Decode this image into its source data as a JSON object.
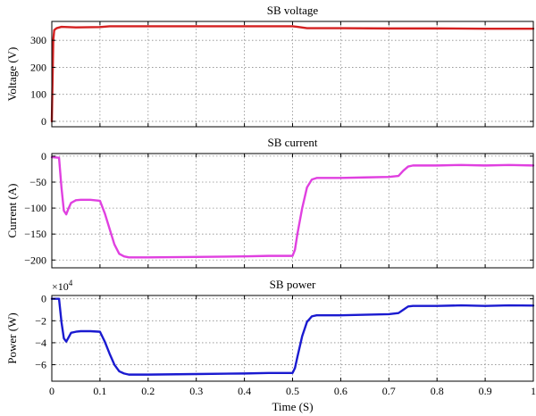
{
  "chart_data": [
    {
      "type": "line",
      "title": "SB voltage",
      "xlabel": "",
      "ylabel": "Voltage (V)",
      "xlim": [
        0,
        1
      ],
      "ylim": [
        -20,
        370
      ],
      "xticks": [
        0,
        0.1,
        0.2,
        0.3,
        0.4,
        0.5,
        0.6,
        0.7,
        0.8,
        0.9,
        1
      ],
      "yticks": [
        0,
        100,
        200,
        300
      ],
      "ytick_labels": [
        "0",
        "100",
        "200",
        "300"
      ],
      "grid": true,
      "color": "#d42020",
      "series": [
        {
          "x": [
            0,
            0.003,
            0.005,
            0.01,
            0.02,
            0.05,
            0.1,
            0.12,
            0.2,
            0.3,
            0.4,
            0.5,
            0.51,
            0.53,
            0.6,
            0.7,
            0.8,
            0.9,
            1.0
          ],
          "y": [
            0,
            300,
            338,
            345,
            350,
            348,
            349,
            352,
            352,
            352,
            352,
            352,
            350,
            345,
            345,
            344,
            344,
            343,
            343
          ]
        }
      ]
    },
    {
      "type": "line",
      "title": "SB current",
      "xlabel": "",
      "ylabel": "Current (A)",
      "xlim": [
        0,
        1
      ],
      "ylim": [
        -215,
        5
      ],
      "xticks": [
        0,
        0.1,
        0.2,
        0.3,
        0.4,
        0.5,
        0.6,
        0.7,
        0.8,
        0.9,
        1
      ],
      "yticks": [
        0,
        -50,
        -100,
        -150,
        -200
      ],
      "ytick_labels": [
        "0",
        "−50",
        "−100",
        "−150",
        "−200"
      ],
      "grid": true,
      "color": "#e040e0",
      "series": [
        {
          "x": [
            0,
            0.015,
            0.02,
            0.025,
            0.03,
            0.035,
            0.04,
            0.05,
            0.06,
            0.08,
            0.1,
            0.11,
            0.12,
            0.13,
            0.14,
            0.15,
            0.16,
            0.2,
            0.3,
            0.4,
            0.45,
            0.5,
            0.505,
            0.51,
            0.52,
            0.53,
            0.54,
            0.55,
            0.6,
            0.65,
            0.7,
            0.72,
            0.73,
            0.74,
            0.75,
            0.8,
            0.85,
            0.9,
            0.95,
            1.0
          ],
          "y": [
            -2,
            -3,
            -60,
            -105,
            -112,
            -100,
            -90,
            -85,
            -84,
            -84,
            -86,
            -110,
            -140,
            -170,
            -188,
            -193,
            -195,
            -195,
            -194,
            -193,
            -192,
            -192,
            -180,
            -150,
            -100,
            -60,
            -45,
            -42,
            -42,
            -41,
            -40,
            -38,
            -28,
            -20,
            -18,
            -18,
            -17,
            -18,
            -17,
            -18
          ]
        }
      ]
    },
    {
      "type": "line",
      "title": "SB power",
      "xlabel": "Time (S)",
      "ylabel": "Power (W)",
      "xlim": [
        0,
        1
      ],
      "ylim": [
        -7.5,
        0.3
      ],
      "axis_multiplier": "×10",
      "axis_multiplier_exponent": "4",
      "xticks": [
        0,
        0.1,
        0.2,
        0.3,
        0.4,
        0.5,
        0.6,
        0.7,
        0.8,
        0.9,
        1
      ],
      "xtick_labels": [
        "0",
        "0.1",
        "0.2",
        "0.3",
        "0.4",
        "0.5",
        "0.6",
        "0.7",
        "0.8",
        "0.9",
        "1"
      ],
      "yticks": [
        0,
        -2,
        -4,
        -6
      ],
      "ytick_labels": [
        "0",
        "−2",
        "−4",
        "−6"
      ],
      "grid": true,
      "color": "#1a1ad0",
      "series": [
        {
          "x": [
            0,
            0.015,
            0.02,
            0.025,
            0.03,
            0.035,
            0.04,
            0.05,
            0.06,
            0.08,
            0.1,
            0.11,
            0.12,
            0.13,
            0.14,
            0.15,
            0.16,
            0.2,
            0.3,
            0.4,
            0.45,
            0.5,
            0.505,
            0.51,
            0.52,
            0.53,
            0.54,
            0.55,
            0.6,
            0.65,
            0.7,
            0.72,
            0.73,
            0.74,
            0.75,
            0.8,
            0.85,
            0.9,
            0.95,
            1.0
          ],
          "y": [
            0,
            0,
            -2.1,
            -3.6,
            -3.9,
            -3.5,
            -3.1,
            -3.0,
            -2.95,
            -2.95,
            -3.0,
            -3.9,
            -5.0,
            -6.0,
            -6.6,
            -6.8,
            -6.9,
            -6.9,
            -6.85,
            -6.8,
            -6.75,
            -6.75,
            -6.3,
            -5.3,
            -3.4,
            -2.1,
            -1.6,
            -1.5,
            -1.5,
            -1.45,
            -1.4,
            -1.3,
            -1.0,
            -0.7,
            -0.65,
            -0.65,
            -0.6,
            -0.65,
            -0.6,
            -0.62
          ]
        }
      ]
    }
  ]
}
